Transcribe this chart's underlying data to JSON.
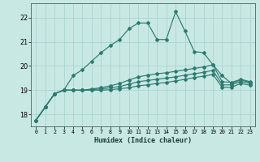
{
  "xlabel": "Humidex (Indice chaleur)",
  "bg_color": "#c8e8e4",
  "grid_color": "#a8d0cc",
  "line_color": "#2e7b70",
  "xlim": [
    -0.5,
    23.5
  ],
  "ylim": [
    17.5,
    22.6
  ],
  "yticks": [
    18,
    19,
    20,
    21,
    22
  ],
  "xticks": [
    0,
    1,
    2,
    3,
    4,
    5,
    6,
    7,
    8,
    9,
    10,
    11,
    12,
    13,
    14,
    15,
    16,
    17,
    18,
    19,
    20,
    21,
    22,
    23
  ],
  "line1_y": [
    17.75,
    18.3,
    18.85,
    19.0,
    19.6,
    19.85,
    20.2,
    20.55,
    20.85,
    21.1,
    21.55,
    21.78,
    21.78,
    21.1,
    21.1,
    22.25,
    21.45,
    20.6,
    20.55,
    20.05,
    19.6,
    19.28,
    19.42,
    19.32
  ],
  "line2_y": [
    17.75,
    18.3,
    18.85,
    19.0,
    19.0,
    19.0,
    19.05,
    19.1,
    19.18,
    19.28,
    19.42,
    19.55,
    19.62,
    19.68,
    19.72,
    19.78,
    19.84,
    19.9,
    19.96,
    20.05,
    19.35,
    19.32,
    19.45,
    19.35
  ],
  "line3_y": [
    17.75,
    18.3,
    18.85,
    19.0,
    19.0,
    19.0,
    19.02,
    19.05,
    19.1,
    19.15,
    19.25,
    19.35,
    19.4,
    19.45,
    19.5,
    19.55,
    19.62,
    19.68,
    19.74,
    19.82,
    19.22,
    19.22,
    19.36,
    19.28
  ],
  "line4_y": [
    17.75,
    18.3,
    18.85,
    19.0,
    19.0,
    19.0,
    19.0,
    19.0,
    19.02,
    19.06,
    19.1,
    19.18,
    19.22,
    19.28,
    19.32,
    19.38,
    19.45,
    19.52,
    19.58,
    19.65,
    19.12,
    19.12,
    19.28,
    19.2
  ]
}
